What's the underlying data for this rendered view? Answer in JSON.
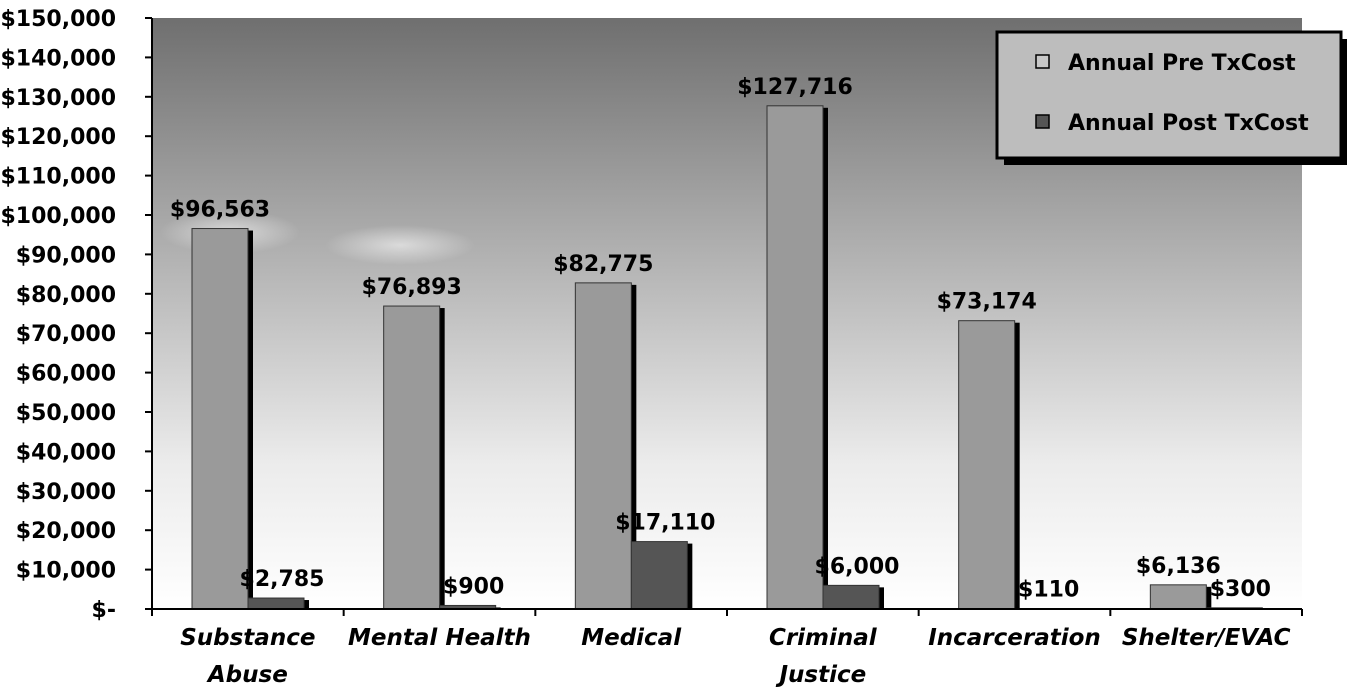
{
  "chart_data": {
    "type": "bar",
    "categories": [
      [
        "Substance",
        "Abuse"
      ],
      [
        "Mental Health"
      ],
      [
        "Medical"
      ],
      [
        "Criminal",
        "Justice"
      ],
      [
        "Incarceration"
      ],
      [
        "Shelter/EVAC"
      ]
    ],
    "series": [
      {
        "name": "Annual Pre TxCost",
        "values": [
          96563,
          76893,
          82775,
          127716,
          73174,
          6136
        ],
        "labels": [
          "$96,563",
          "$76,893",
          "$82,775",
          "$127,716",
          "$73,174",
          "$6,136"
        ],
        "color": "#9a9a9a"
      },
      {
        "name": "Annual Post TxCost",
        "values": [
          2785,
          900,
          17110,
          6000,
          110,
          300
        ],
        "labels": [
          "$2,785",
          "$900",
          "$17,110",
          "$6,000",
          "$110",
          "$300"
        ],
        "color": "#555555"
      }
    ],
    "yticks": [
      0,
      10000,
      20000,
      30000,
      40000,
      50000,
      60000,
      70000,
      80000,
      90000,
      100000,
      110000,
      120000,
      130000,
      140000,
      150000
    ],
    "ytick_labels": [
      "$-",
      "$10,000",
      "$20,000",
      "$30,000",
      "$40,000",
      "$50,000",
      "$60,000",
      "$70,000",
      "$80,000",
      "$90,000",
      "$100,000",
      "$110,000",
      "$120,000",
      "$130,000",
      "$140,000",
      "$150,000"
    ],
    "ylim": [
      0,
      150000
    ],
    "legend_position": "top-right",
    "grid": false,
    "background": "gradient dark gray to white"
  }
}
